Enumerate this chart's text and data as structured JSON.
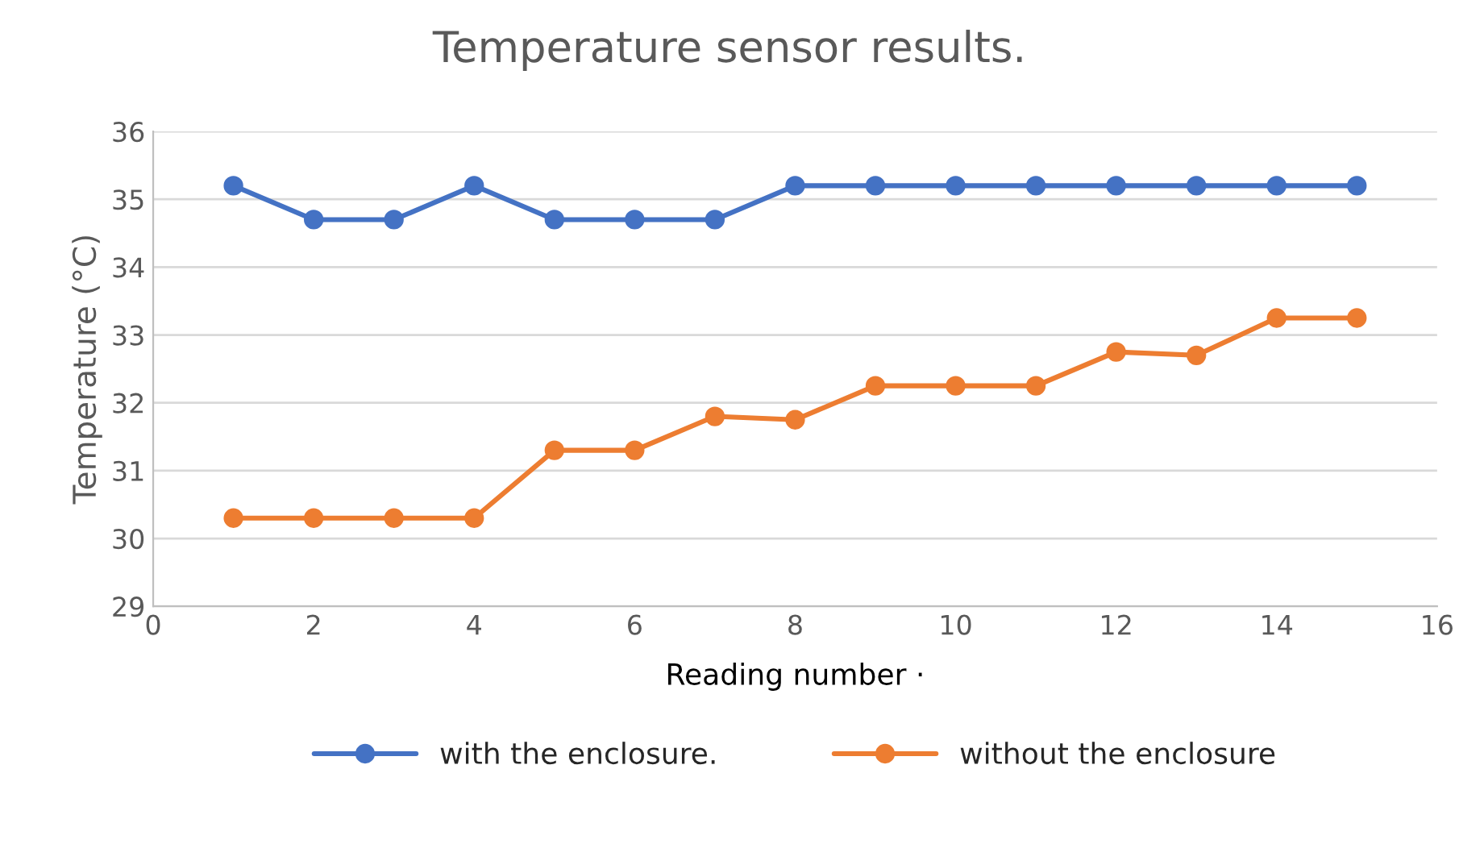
{
  "chart_data": {
    "type": "line",
    "title": "Temperature sensor results.",
    "xlabel": "Reading number ·",
    "ylabel": "Temperature (°C)",
    "x": [
      1,
      2,
      3,
      4,
      5,
      6,
      7,
      8,
      9,
      10,
      11,
      12,
      13,
      14,
      15
    ],
    "series": [
      {
        "name": "with the enclosure.",
        "color": "#4472c4",
        "values": [
          35.2,
          34.7,
          34.7,
          35.2,
          34.7,
          34.7,
          34.7,
          35.2,
          35.2,
          35.2,
          35.2,
          35.2,
          35.2,
          35.2,
          35.2
        ]
      },
      {
        "name": "without the enclosure",
        "color": "#ed7d31",
        "values": [
          30.3,
          30.3,
          30.3,
          30.3,
          31.3,
          31.3,
          31.8,
          31.75,
          32.25,
          32.25,
          32.25,
          32.75,
          32.7,
          33.25,
          33.25
        ]
      }
    ],
    "xlim": [
      0,
      16
    ],
    "xticks": [
      0,
      2,
      4,
      6,
      8,
      10,
      12,
      14,
      16
    ],
    "ylim": [
      29,
      36
    ],
    "yticks": [
      29,
      30,
      31,
      32,
      33,
      34,
      35,
      36
    ],
    "grid": "y",
    "legend": "bottom",
    "marker": "circle",
    "line_style": "solid"
  }
}
